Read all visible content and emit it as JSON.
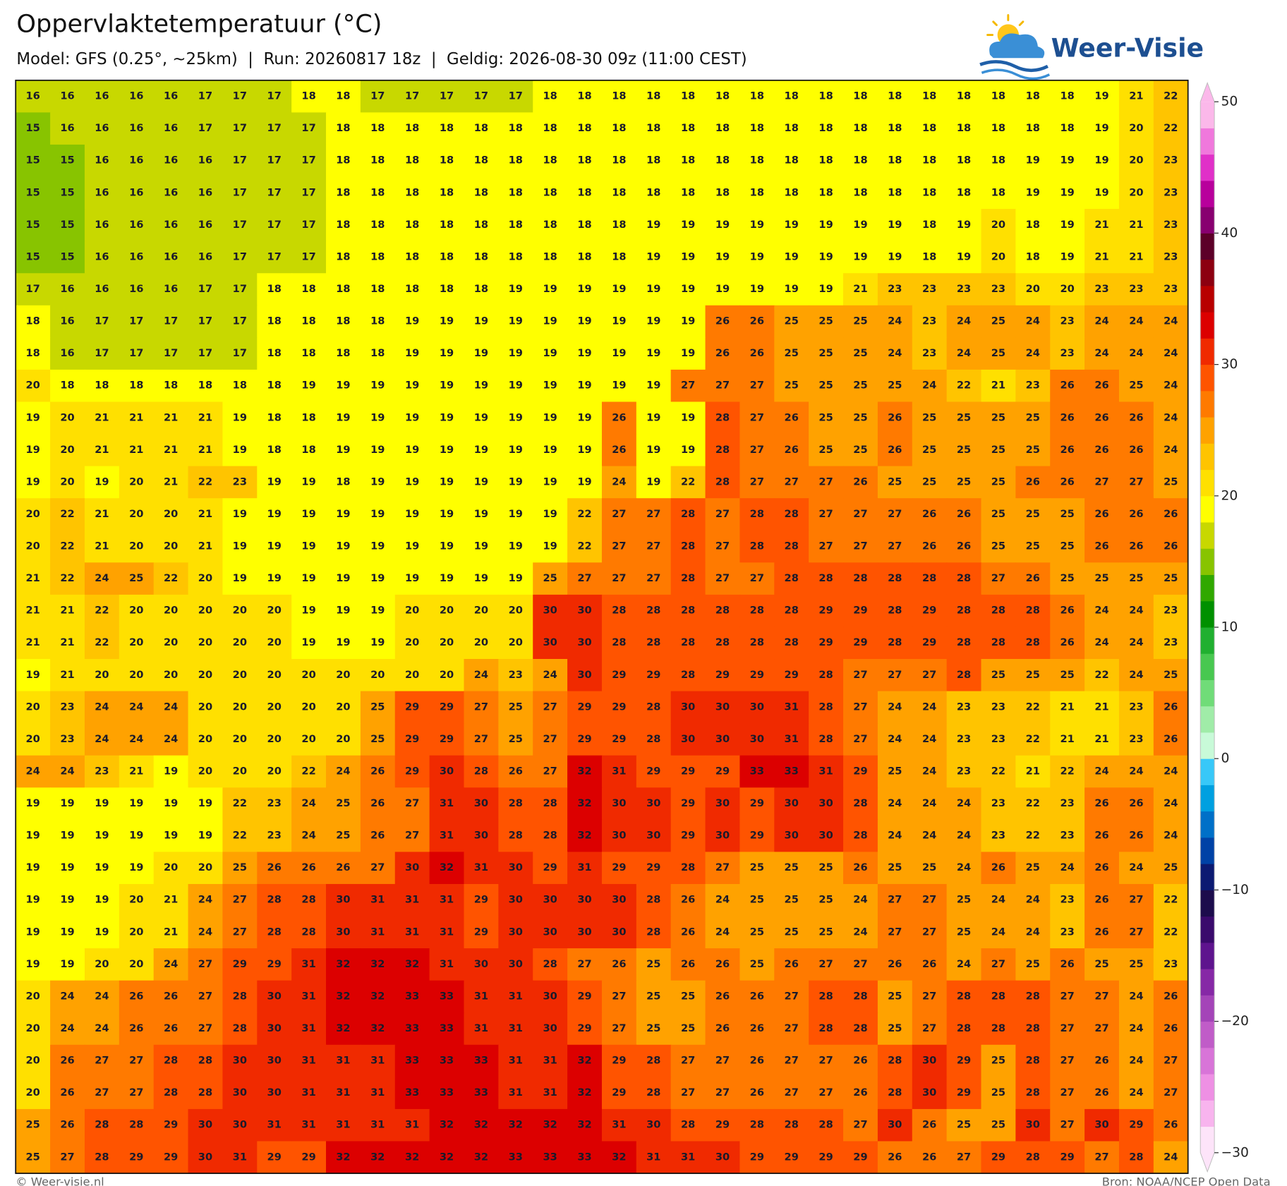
{
  "chart_data": {
    "type": "heatmap",
    "title": "Oppervlaktetemperatuur (°C)",
    "subtitle": "Model: GFS (0.25°, ~25km)  |  Run: 20260817 18z  |  Geldig: 2026-08-30 09z (11:00 CEST)",
    "logo": "Weer-Visie",
    "credit": "© Weer-visie.nl",
    "source": "Bron: NOAA/NCEP Open Data",
    "clim": [
      -30,
      50
    ],
    "cticks": [
      {
        "value": 50,
        "label": "50"
      },
      {
        "value": 40,
        "label": "40"
      },
      {
        "value": 30,
        "label": "30"
      },
      {
        "value": 20,
        "label": "20"
      },
      {
        "value": 10,
        "label": "10"
      },
      {
        "value": 0,
        "label": "0"
      },
      {
        "value": -10,
        "label": "−10"
      },
      {
        "value": -20,
        "label": "−20"
      },
      {
        "value": -30,
        "label": "−30"
      }
    ],
    "colors": [
      "#fde4f9",
      "#f8b4ee",
      "#ee90e4",
      "#d874d8",
      "#c05cc8",
      "#a444b8",
      "#8628a6",
      "#5e148e",
      "#3a0a6c",
      "#1c0c4c",
      "#0c1a72",
      "#0042a6",
      "#0070c8",
      "#00a0e0",
      "#38c8f8",
      "#c8fad8",
      "#a0eca8",
      "#70dc78",
      "#48c850",
      "#20b030",
      "#009000",
      "#30a800",
      "#88c400",
      "#c8d800",
      "#ffff00",
      "#ffe000",
      "#ffc400",
      "#ffa200",
      "#ff7a00",
      "#ff5400",
      "#f02a00",
      "#dc0000",
      "#b80000",
      "#8c0010",
      "#5c0028",
      "#880070",
      "#b8009c",
      "#e030c8",
      "#f078dc",
      "#fbb8ea"
    ],
    "values": [
      [
        16,
        16,
        16,
        16,
        16,
        17,
        17,
        17,
        18,
        18,
        17,
        17,
        17,
        17,
        17,
        18,
        18,
        18,
        18,
        18,
        18,
        18,
        18,
        18,
        18,
        18,
        18,
        18,
        18,
        18,
        18,
        19,
        21,
        22
      ],
      [
        15,
        16,
        16,
        16,
        16,
        17,
        17,
        17,
        17,
        18,
        18,
        18,
        18,
        18,
        18,
        18,
        18,
        18,
        18,
        18,
        18,
        18,
        18,
        18,
        18,
        18,
        18,
        18,
        18,
        18,
        18,
        19,
        20,
        22
      ],
      [
        15,
        15,
        16,
        16,
        16,
        16,
        17,
        17,
        17,
        18,
        18,
        18,
        18,
        18,
        18,
        18,
        18,
        18,
        18,
        18,
        18,
        18,
        18,
        18,
        18,
        18,
        18,
        18,
        18,
        19,
        19,
        19,
        20,
        23
      ],
      [
        15,
        15,
        16,
        16,
        16,
        16,
        17,
        17,
        17,
        18,
        18,
        18,
        18,
        18,
        18,
        18,
        18,
        18,
        18,
        18,
        18,
        18,
        18,
        18,
        18,
        18,
        18,
        18,
        18,
        19,
        19,
        19,
        20,
        23
      ],
      [
        15,
        15,
        16,
        16,
        16,
        16,
        17,
        17,
        17,
        18,
        18,
        18,
        18,
        18,
        18,
        18,
        18,
        18,
        19,
        19,
        19,
        19,
        19,
        19,
        19,
        19,
        18,
        19,
        20,
        18,
        19,
        21,
        21,
        23
      ],
      [
        15,
        15,
        16,
        16,
        16,
        16,
        17,
        17,
        17,
        18,
        18,
        18,
        18,
        18,
        18,
        18,
        18,
        18,
        19,
        19,
        19,
        19,
        19,
        19,
        19,
        19,
        18,
        19,
        20,
        18,
        19,
        21,
        21,
        23
      ],
      [
        17,
        16,
        16,
        16,
        16,
        17,
        17,
        18,
        18,
        18,
        18,
        18,
        18,
        18,
        19,
        19,
        19,
        19,
        19,
        19,
        19,
        19,
        19,
        19,
        21,
        23,
        23,
        23,
        23,
        20,
        20,
        23,
        23,
        23
      ],
      [
        18,
        16,
        17,
        17,
        17,
        17,
        17,
        18,
        18,
        18,
        18,
        19,
        19,
        19,
        19,
        19,
        19,
        19,
        19,
        19,
        26,
        26,
        25,
        25,
        25,
        24,
        23,
        24,
        25,
        24,
        23,
        24,
        24,
        24
      ],
      [
        18,
        16,
        17,
        17,
        17,
        17,
        17,
        18,
        18,
        18,
        18,
        19,
        19,
        19,
        19,
        19,
        19,
        19,
        19,
        19,
        26,
        26,
        25,
        25,
        25,
        24,
        23,
        24,
        25,
        24,
        23,
        24,
        24,
        24
      ],
      [
        20,
        18,
        18,
        18,
        18,
        18,
        18,
        18,
        19,
        19,
        19,
        19,
        19,
        19,
        19,
        19,
        19,
        19,
        19,
        27,
        27,
        27,
        25,
        25,
        25,
        25,
        24,
        22,
        21,
        23,
        26,
        26,
        25,
        24
      ],
      [
        19,
        20,
        21,
        21,
        21,
        21,
        19,
        18,
        18,
        19,
        19,
        19,
        19,
        19,
        19,
        19,
        19,
        26,
        19,
        19,
        28,
        27,
        26,
        25,
        25,
        26,
        25,
        25,
        25,
        25,
        26,
        26,
        26,
        24
      ],
      [
        19,
        20,
        21,
        21,
        21,
        21,
        19,
        18,
        18,
        19,
        19,
        19,
        19,
        19,
        19,
        19,
        19,
        26,
        19,
        19,
        28,
        27,
        26,
        25,
        25,
        26,
        25,
        25,
        25,
        25,
        26,
        26,
        26,
        24
      ],
      [
        19,
        20,
        19,
        20,
        21,
        22,
        23,
        19,
        19,
        18,
        19,
        19,
        19,
        19,
        19,
        19,
        19,
        24,
        19,
        22,
        28,
        27,
        27,
        27,
        26,
        25,
        25,
        25,
        25,
        26,
        26,
        27,
        27,
        25
      ],
      [
        20,
        22,
        21,
        20,
        20,
        21,
        19,
        19,
        19,
        19,
        19,
        19,
        19,
        19,
        19,
        19,
        22,
        27,
        27,
        28,
        27,
        28,
        28,
        27,
        27,
        27,
        26,
        26,
        25,
        25,
        25,
        26,
        26,
        26
      ],
      [
        20,
        22,
        21,
        20,
        20,
        21,
        19,
        19,
        19,
        19,
        19,
        19,
        19,
        19,
        19,
        19,
        22,
        27,
        27,
        28,
        27,
        28,
        28,
        27,
        27,
        27,
        26,
        26,
        25,
        25,
        25,
        26,
        26,
        26
      ],
      [
        21,
        22,
        24,
        25,
        22,
        20,
        19,
        19,
        19,
        19,
        19,
        19,
        19,
        19,
        19,
        25,
        27,
        27,
        27,
        28,
        27,
        27,
        28,
        28,
        28,
        28,
        28,
        28,
        27,
        26,
        25,
        25,
        25,
        25
      ],
      [
        21,
        21,
        22,
        20,
        20,
        20,
        20,
        20,
        19,
        19,
        19,
        20,
        20,
        20,
        20,
        30,
        30,
        28,
        28,
        28,
        28,
        28,
        28,
        29,
        29,
        28,
        29,
        28,
        28,
        28,
        26,
        24,
        24,
        23
      ],
      [
        21,
        21,
        22,
        20,
        20,
        20,
        20,
        20,
        19,
        19,
        19,
        20,
        20,
        20,
        20,
        30,
        30,
        28,
        28,
        28,
        28,
        28,
        28,
        29,
        29,
        28,
        29,
        28,
        28,
        28,
        26,
        24,
        24,
        23
      ],
      [
        19,
        21,
        20,
        20,
        20,
        20,
        20,
        20,
        20,
        20,
        20,
        20,
        20,
        24,
        23,
        24,
        30,
        29,
        29,
        28,
        29,
        29,
        29,
        28,
        27,
        27,
        27,
        28,
        25,
        25,
        25,
        22,
        24,
        25
      ],
      [
        20,
        23,
        24,
        24,
        24,
        20,
        20,
        20,
        20,
        20,
        25,
        29,
        29,
        27,
        25,
        27,
        29,
        29,
        28,
        30,
        30,
        30,
        31,
        28,
        27,
        24,
        24,
        23,
        23,
        22,
        21,
        21,
        23,
        26
      ],
      [
        20,
        23,
        24,
        24,
        24,
        20,
        20,
        20,
        20,
        20,
        25,
        29,
        29,
        27,
        25,
        27,
        29,
        29,
        28,
        30,
        30,
        30,
        31,
        28,
        27,
        24,
        24,
        23,
        23,
        22,
        21,
        21,
        23,
        26
      ],
      [
        24,
        24,
        23,
        21,
        19,
        20,
        20,
        20,
        22,
        24,
        26,
        29,
        30,
        28,
        26,
        27,
        32,
        31,
        29,
        29,
        29,
        33,
        33,
        31,
        29,
        25,
        24,
        23,
        22,
        21,
        22,
        24,
        24,
        24
      ],
      [
        19,
        19,
        19,
        19,
        19,
        19,
        22,
        23,
        24,
        25,
        26,
        27,
        31,
        30,
        28,
        28,
        32,
        30,
        30,
        29,
        30,
        29,
        30,
        30,
        28,
        24,
        24,
        24,
        23,
        22,
        23,
        26,
        26,
        24
      ],
      [
        19,
        19,
        19,
        19,
        19,
        19,
        22,
        23,
        24,
        25,
        26,
        27,
        31,
        30,
        28,
        28,
        32,
        30,
        30,
        29,
        30,
        29,
        30,
        30,
        28,
        24,
        24,
        24,
        23,
        22,
        23,
        26,
        26,
        24
      ],
      [
        19,
        19,
        19,
        19,
        20,
        20,
        25,
        26,
        26,
        26,
        27,
        30,
        32,
        31,
        30,
        29,
        31,
        29,
        29,
        28,
        27,
        25,
        25,
        25,
        26,
        25,
        25,
        24,
        26,
        25,
        24,
        26,
        24,
        25
      ],
      [
        19,
        19,
        19,
        20,
        21,
        24,
        27,
        28,
        28,
        30,
        31,
        31,
        31,
        29,
        30,
        30,
        30,
        30,
        28,
        26,
        24,
        25,
        25,
        25,
        24,
        27,
        27,
        25,
        24,
        24,
        23,
        26,
        27,
        22
      ],
      [
        19,
        19,
        19,
        20,
        21,
        24,
        27,
        28,
        28,
        30,
        31,
        31,
        31,
        29,
        30,
        30,
        30,
        30,
        28,
        26,
        24,
        25,
        25,
        25,
        24,
        27,
        27,
        25,
        24,
        24,
        23,
        26,
        27,
        22
      ],
      [
        19,
        19,
        20,
        20,
        24,
        27,
        29,
        29,
        31,
        32,
        32,
        32,
        31,
        30,
        30,
        28,
        27,
        26,
        25,
        26,
        26,
        25,
        26,
        27,
        27,
        26,
        26,
        24,
        27,
        25,
        26,
        25,
        25,
        23
      ],
      [
        20,
        24,
        24,
        26,
        26,
        27,
        28,
        30,
        31,
        32,
        32,
        33,
        33,
        31,
        31,
        30,
        29,
        27,
        25,
        25,
        26,
        26,
        27,
        28,
        28,
        25,
        27,
        28,
        28,
        28,
        27,
        27,
        24,
        26
      ],
      [
        20,
        24,
        24,
        26,
        26,
        27,
        28,
        30,
        31,
        32,
        32,
        33,
        33,
        31,
        31,
        30,
        29,
        27,
        25,
        25,
        26,
        26,
        27,
        28,
        28,
        25,
        27,
        28,
        28,
        28,
        27,
        27,
        24,
        26
      ],
      [
        20,
        26,
        27,
        27,
        28,
        28,
        30,
        30,
        31,
        31,
        31,
        33,
        33,
        33,
        31,
        31,
        32,
        29,
        28,
        27,
        27,
        26,
        27,
        27,
        26,
        28,
        30,
        29,
        25,
        28,
        27,
        26,
        24,
        27
      ],
      [
        20,
        26,
        27,
        27,
        28,
        28,
        30,
        30,
        31,
        31,
        31,
        33,
        33,
        33,
        31,
        31,
        32,
        29,
        28,
        27,
        27,
        26,
        27,
        27,
        26,
        28,
        30,
        29,
        25,
        28,
        27,
        26,
        24,
        27
      ],
      [
        25,
        26,
        28,
        28,
        29,
        30,
        30,
        31,
        31,
        31,
        31,
        31,
        32,
        32,
        32,
        32,
        32,
        31,
        30,
        28,
        29,
        28,
        28,
        28,
        27,
        30,
        26,
        25,
        25,
        30,
        27,
        30,
        29,
        26
      ],
      [
        25,
        27,
        28,
        29,
        29,
        30,
        31,
        29,
        29,
        32,
        32,
        32,
        32,
        32,
        33,
        33,
        33,
        32,
        31,
        31,
        30,
        29,
        29,
        29,
        29,
        26,
        26,
        27,
        29,
        28,
        29,
        27,
        28,
        24
      ]
    ]
  }
}
